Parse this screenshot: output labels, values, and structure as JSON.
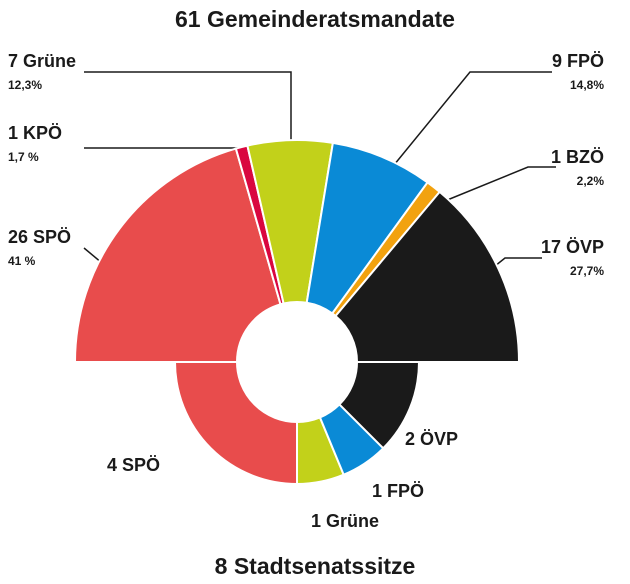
{
  "chart_data": [
    {
      "type": "pie",
      "title": "61 Gemeinderatsmandate",
      "categories": [
        "SPÖ",
        "KPÖ",
        "Grüne",
        "FPÖ",
        "BZÖ",
        "ÖVP"
      ],
      "values": [
        26,
        1,
        7,
        9,
        1,
        17
      ],
      "percent": [
        41,
        1.7,
        12.3,
        14.8,
        2.2,
        27.7
      ],
      "percent_labels": [
        "41 %",
        "1,7 %",
        "12,3%",
        "14,8%",
        "2,2%",
        "27,7%"
      ],
      "colors": [
        "#e84c4c",
        "#d9073f",
        "#c2d11a",
        "#0a8ad6",
        "#f2a20f",
        "#1a1a1a"
      ]
    },
    {
      "type": "pie",
      "title": "8 Stadtsenatssitze",
      "categories": [
        "SPÖ",
        "Grüne",
        "FPÖ",
        "ÖVP"
      ],
      "values": [
        4,
        1,
        1,
        2
      ],
      "colors": [
        "#e84c4c",
        "#c2d11a",
        "#0a8ad6",
        "#1a1a1a"
      ]
    }
  ]
}
